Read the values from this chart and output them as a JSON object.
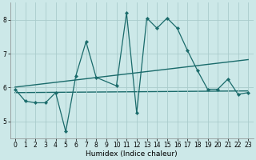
{
  "xlabel": "Humidex (Indice chaleur)",
  "xlim": [
    -0.5,
    23.5
  ],
  "ylim": [
    4.5,
    8.5
  ],
  "yticks": [
    5,
    6,
    7,
    8
  ],
  "xticks": [
    0,
    1,
    2,
    3,
    4,
    5,
    6,
    7,
    8,
    9,
    10,
    11,
    12,
    13,
    14,
    15,
    16,
    17,
    18,
    19,
    20,
    21,
    22,
    23
  ],
  "bg_color": "#cce8e8",
  "grid_color": "#aacccc",
  "line_color": "#1a6b6b",
  "x_main": [
    0,
    1,
    2,
    3,
    4,
    5,
    6,
    7,
    8,
    10,
    11,
    12,
    13,
    14,
    15,
    16,
    17,
    18,
    19,
    20,
    21,
    22,
    23
  ],
  "y_main": [
    5.95,
    5.6,
    5.55,
    5.55,
    5.85,
    4.7,
    6.35,
    7.35,
    6.3,
    6.05,
    8.2,
    5.25,
    8.05,
    7.75,
    8.05,
    7.75,
    7.1,
    6.5,
    5.95,
    5.95,
    6.25,
    5.8,
    5.85
  ],
  "flat_y_start": 5.85,
  "flat_y_end": 5.9,
  "tick_fontsize": 5.5,
  "xlabel_fontsize": 6.5
}
